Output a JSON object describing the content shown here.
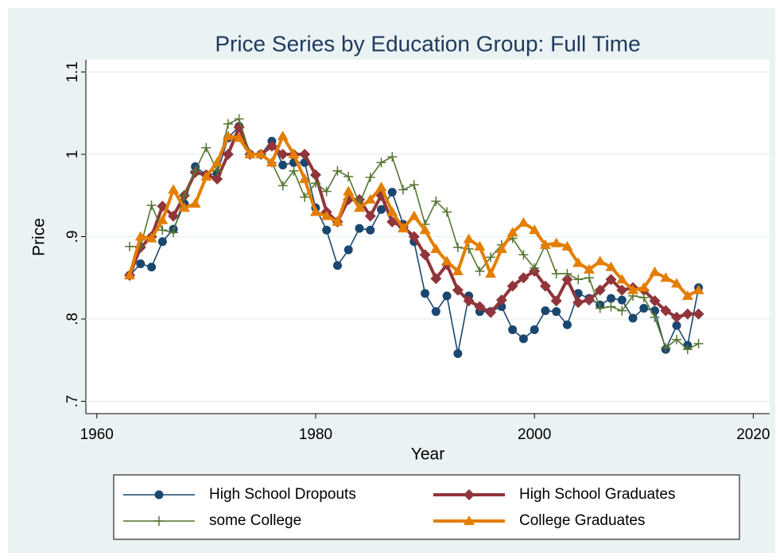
{
  "chart_data": {
    "type": "line",
    "title": "Price Series by Education Group: Full Time",
    "x_label": "Year",
    "y_label": "Price",
    "x": [
      1963,
      1964,
      1965,
      1966,
      1967,
      1968,
      1969,
      1970,
      1971,
      1972,
      1973,
      1974,
      1975,
      1976,
      1977,
      1978,
      1979,
      1980,
      1981,
      1982,
      1983,
      1984,
      1985,
      1986,
      1987,
      1988,
      1989,
      1990,
      1991,
      1992,
      1993,
      1994,
      1995,
      1996,
      1997,
      1998,
      1999,
      2000,
      2001,
      2002,
      2003,
      2004,
      2005,
      2006,
      2007,
      2008,
      2009,
      2010,
      2011,
      2012,
      2013,
      2014,
      2015
    ],
    "series": [
      {
        "name": "High School Dropouts",
        "color": "#1a476f",
        "marker": "circle",
        "line_width": 1.6,
        "values": [
          0.853,
          0.867,
          0.863,
          0.894,
          0.909,
          0.94,
          0.985,
          0.975,
          0.977,
          1.02,
          1.034,
          1.0,
          1.0,
          1.016,
          0.987,
          0.99,
          0.99,
          0.935,
          0.908,
          0.865,
          0.884,
          0.91,
          0.908,
          0.933,
          0.954,
          0.915,
          0.894,
          0.831,
          0.809,
          0.828,
          0.758,
          0.828,
          0.809,
          0.809,
          0.815,
          0.787,
          0.776,
          0.787,
          0.81,
          0.809,
          0.793,
          0.831,
          0.825,
          0.817,
          0.825,
          0.823,
          0.801,
          0.813,
          0.81,
          0.763,
          0.792,
          0.768,
          0.838
        ]
      },
      {
        "name": "High School Graduates",
        "color": "#90353b",
        "marker": "diamond",
        "line_width": 4,
        "values": [
          0.853,
          0.887,
          0.9,
          0.937,
          0.925,
          0.95,
          0.978,
          0.975,
          0.97,
          1.0,
          1.033,
          1.0,
          1.0,
          1.01,
          1.0,
          1.0,
          1.0,
          0.975,
          0.93,
          0.918,
          0.945,
          0.945,
          0.925,
          0.95,
          0.918,
          0.912,
          0.9,
          0.878,
          0.849,
          0.866,
          0.835,
          0.822,
          0.815,
          0.808,
          0.823,
          0.84,
          0.85,
          0.858,
          0.84,
          0.822,
          0.848,
          0.82,
          0.823,
          0.835,
          0.848,
          0.835,
          0.838,
          0.835,
          0.822,
          0.81,
          0.802,
          0.806,
          0.806
        ]
      },
      {
        "name": "some College",
        "color": "#55752f",
        "marker": "plus",
        "line_width": 1.6,
        "values": [
          0.888,
          0.888,
          0.938,
          0.908,
          0.905,
          0.95,
          0.98,
          1.008,
          0.98,
          1.037,
          1.043,
          1.0,
          1.0,
          0.99,
          0.962,
          0.98,
          0.948,
          0.965,
          0.955,
          0.98,
          0.973,
          0.94,
          0.972,
          0.99,
          0.997,
          0.957,
          0.963,
          0.915,
          0.943,
          0.93,
          0.887,
          0.885,
          0.858,
          0.875,
          0.89,
          0.898,
          0.878,
          0.862,
          0.89,
          0.855,
          0.855,
          0.848,
          0.85,
          0.813,
          0.815,
          0.81,
          0.828,
          0.826,
          0.802,
          0.765,
          0.775,
          0.763,
          0.77
        ]
      },
      {
        "name": "College Graduates",
        "color": "#e37e00",
        "marker": "triangle",
        "line_width": 4,
        "values": [
          0.853,
          0.9,
          0.898,
          0.92,
          0.957,
          0.935,
          0.94,
          0.973,
          0.99,
          1.022,
          1.02,
          1.0,
          1.0,
          0.99,
          1.022,
          1.0,
          0.97,
          0.93,
          0.925,
          0.918,
          0.955,
          0.935,
          0.945,
          0.96,
          0.93,
          0.91,
          0.925,
          0.908,
          0.885,
          0.87,
          0.858,
          0.897,
          0.888,
          0.855,
          0.885,
          0.905,
          0.917,
          0.908,
          0.89,
          0.892,
          0.888,
          0.868,
          0.86,
          0.87,
          0.863,
          0.848,
          0.835,
          0.838,
          0.857,
          0.85,
          0.843,
          0.828,
          0.835
        ]
      }
    ],
    "xlim": [
      1959,
      2021.5
    ],
    "xticks": [
      1960,
      1980,
      2000,
      2020
    ],
    "ylim": [
      0.685,
      1.115
    ],
    "yticks": [
      {
        "value": 0.7,
        "label": ".7"
      },
      {
        "value": 0.8,
        "label": ".8"
      },
      {
        "value": 0.9,
        "label": ".9"
      },
      1,
      1.1
    ],
    "grid": true,
    "legend_position": "bottom"
  }
}
